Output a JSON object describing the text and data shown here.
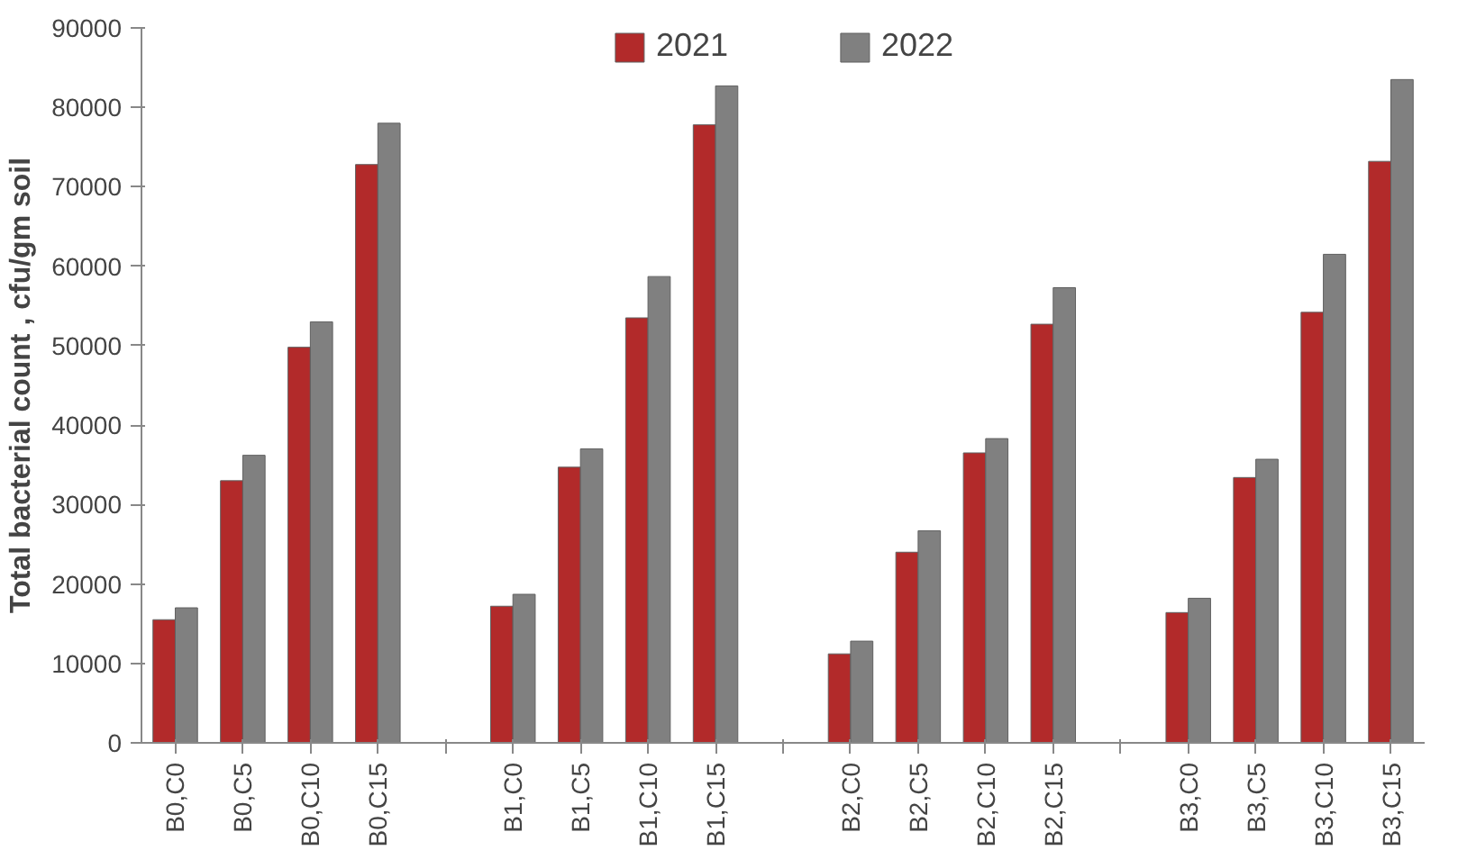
{
  "chart_data": {
    "type": "bar",
    "ylabel": "Total bacterial count , cfu/gm soil",
    "categories": [
      "B0,C0",
      "B0,C5",
      "B0,C10",
      "B0,C15",
      null,
      "B1,C0",
      "B1,C5",
      "B1,C10",
      "B1,C15",
      null,
      "B2,C0",
      "B2,C5",
      "B2,C10",
      "B2,C15",
      null,
      "B3,C0",
      "B3,C5",
      "B3,C10",
      "B3,C15"
    ],
    "series": [
      {
        "name": "2021",
        "color": "#b22a2a",
        "values": [
          15500,
          33000,
          49800,
          72800,
          null,
          17200,
          34700,
          53500,
          77800,
          null,
          11200,
          24000,
          36500,
          52700,
          null,
          16400,
          33400,
          54200,
          73200
        ]
      },
      {
        "name": "2022",
        "color": "#808080",
        "values": [
          17000,
          36200,
          53000,
          78000,
          null,
          18700,
          37000,
          58700,
          82700,
          null,
          12800,
          26700,
          38300,
          57300,
          null,
          18200,
          35700,
          61500,
          83500
        ]
      }
    ],
    "ylim": [
      0,
      90000
    ],
    "yticks": [
      0,
      10000,
      20000,
      30000,
      40000,
      50000,
      60000,
      70000,
      80000,
      90000
    ],
    "grid": false,
    "legend": "top"
  }
}
